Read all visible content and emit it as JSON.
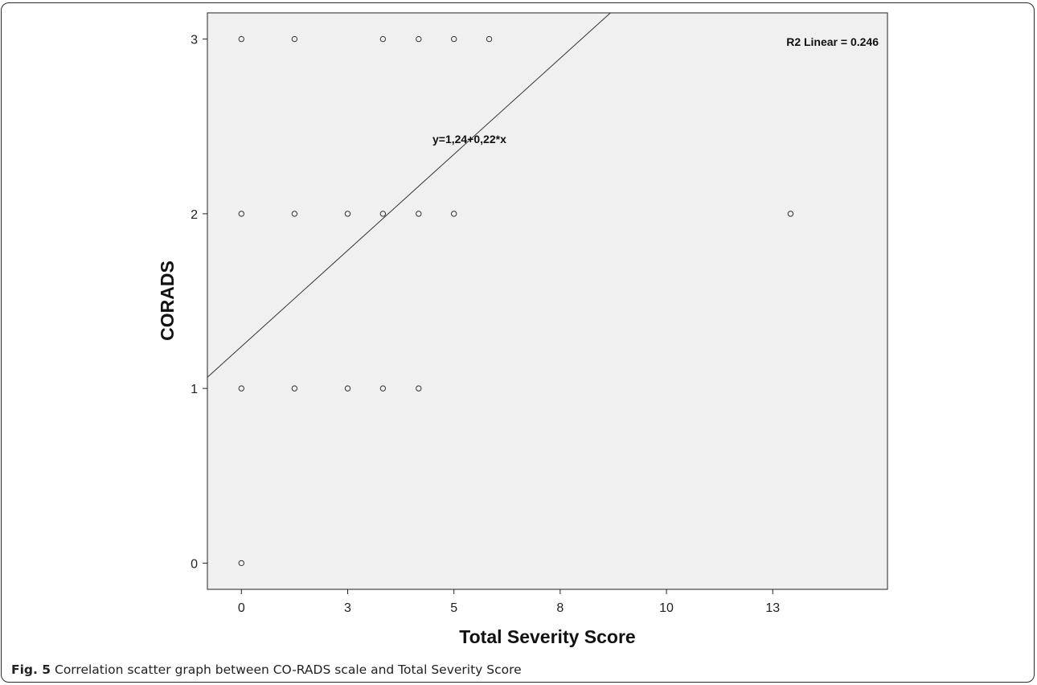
{
  "chart_data": {
    "type": "scatter",
    "xlabel": "Total Severity Score",
    "ylabel": "CORADS",
    "x_tick_labels": [
      "0",
      "3",
      "5",
      "8",
      "10",
      "13"
    ],
    "x_tick_values": [
      0,
      2.5,
      5,
      7.5,
      10,
      12.5
    ],
    "y_ticks": [
      0,
      1,
      2,
      3
    ],
    "xlim": [
      -0.8,
      15.2
    ],
    "ylim": [
      -0.15,
      3.15
    ],
    "grid": false,
    "points": [
      {
        "x": 0,
        "y": 3
      },
      {
        "x": 1.25,
        "y": 3
      },
      {
        "x": 3.33,
        "y": 3
      },
      {
        "x": 4.17,
        "y": 3
      },
      {
        "x": 5,
        "y": 3
      },
      {
        "x": 5.83,
        "y": 3
      },
      {
        "x": 0,
        "y": 2
      },
      {
        "x": 1.25,
        "y": 2
      },
      {
        "x": 2.5,
        "y": 2
      },
      {
        "x": 3.33,
        "y": 2
      },
      {
        "x": 4.17,
        "y": 2
      },
      {
        "x": 5,
        "y": 2
      },
      {
        "x": 12.92,
        "y": 2
      },
      {
        "x": 0,
        "y": 1
      },
      {
        "x": 1.25,
        "y": 1
      },
      {
        "x": 2.5,
        "y": 1
      },
      {
        "x": 3.33,
        "y": 1
      },
      {
        "x": 4.17,
        "y": 1
      },
      {
        "x": 0,
        "y": 0
      }
    ],
    "fit_line": {
      "intercept": 1.24,
      "slope": 0.22
    },
    "annotations": {
      "equation": "y=1,24+0,22*x",
      "r2": "R2 Linear = 0.246"
    }
  },
  "caption": {
    "label": "Fig. 5",
    "text": " Correlation scatter graph between CO-RADS scale and Total Severity Score"
  }
}
